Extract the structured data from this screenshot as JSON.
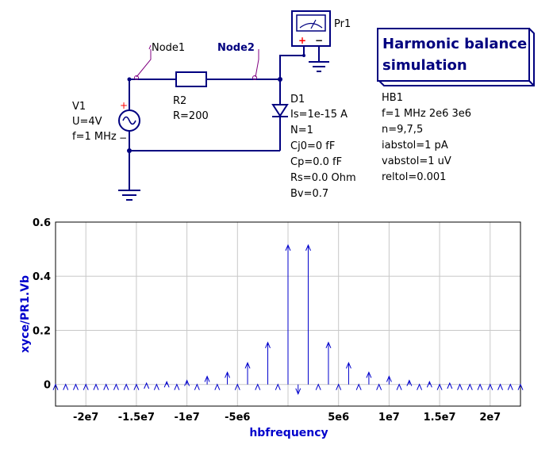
{
  "schematic": {
    "probe": {
      "label": "Pr1",
      "plus": "+",
      "minus": "−"
    },
    "node1": "Node1",
    "node2": "Node2",
    "hb_box": {
      "title_line1": "Harmonic balance",
      "title_line2": "simulation"
    },
    "hb_params": [
      "HB1",
      "f=1 MHz 2e6 3e6",
      "n=9,7,5",
      "iabstol=1 pA",
      "vabstol=1 uV",
      "reltol=0.001"
    ],
    "source": {
      "lines": [
        "V1",
        "U=4V",
        "f=1 MHz"
      ],
      "plus": "+",
      "minus": "−"
    },
    "resistor": {
      "lines": [
        "R2",
        "R=200"
      ]
    },
    "diode": {
      "lines": [
        "D1",
        "Is=1e-15 A",
        "N=1",
        "Cj0=0 fF",
        "Cp=0.0 fF",
        "Rs=0.0 Ohm",
        "Bv=0.7"
      ]
    }
  },
  "chart_data": {
    "type": "stem",
    "xlabel": "hbfrequency",
    "ylabel": "xyce/PR1.Vb",
    "xlim": [
      -23000000.0,
      23000000.0
    ],
    "ylim": [
      -0.08,
      0.6
    ],
    "grid": true,
    "color": "#0000cc",
    "x_ticks": [
      -20000000.0,
      -15000000.0,
      -10000000.0,
      -5000000.0,
      0,
      5000000.0,
      10000000.0,
      15000000.0,
      20000000.0
    ],
    "x_tick_labels": [
      "-2e7",
      "-1.5e7",
      "-1e7",
      "-5e6",
      "0",
      "5e6",
      "1e7",
      "1.5e7",
      "2e7"
    ],
    "y_ticks": [
      0,
      0.2,
      0.4,
      0.6
    ],
    "y_tick_labels": [
      "0",
      "0.2",
      "0.4",
      "0.6"
    ],
    "x": [
      -23000000,
      -22000000,
      -21000000,
      -20000000,
      -19000000,
      -18000000,
      -17000000,
      -16000000,
      -15000000,
      -14000000,
      -13000000,
      -12000000,
      -11000000,
      -10000000,
      -9000000,
      -8000000,
      -7000000,
      -6000000,
      -5000000,
      -4000000,
      -3000000,
      -2000000,
      -1000000,
      0,
      1000000,
      2000000,
      3000000,
      4000000,
      5000000,
      6000000,
      7000000,
      8000000,
      9000000,
      10000000,
      11000000,
      12000000,
      13000000,
      14000000,
      15000000,
      16000000,
      17000000,
      18000000,
      19000000,
      20000000,
      21000000,
      22000000,
      23000000
    ],
    "y": [
      0,
      0,
      0,
      0,
      0,
      0,
      0,
      0,
      0,
      0.005,
      0,
      0.01,
      0,
      0.015,
      0,
      0.03,
      0,
      0.045,
      0,
      0.08,
      0,
      0.155,
      0,
      0.515,
      -0.035,
      0.515,
      0,
      0.155,
      0,
      0.08,
      0,
      0.045,
      0,
      0.03,
      0,
      0.015,
      0,
      0.01,
      0,
      0.005,
      0,
      0,
      0,
      0,
      0,
      0,
      0
    ]
  }
}
